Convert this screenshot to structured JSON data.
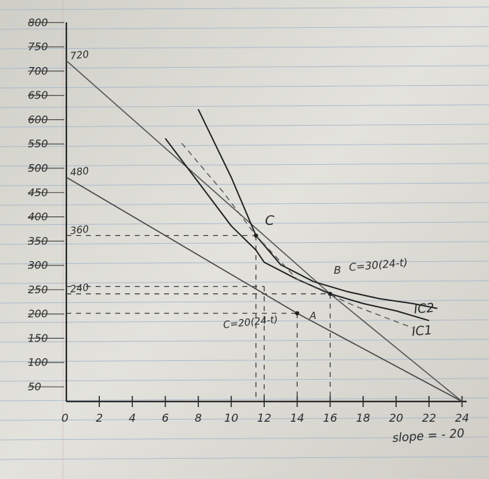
{
  "chart_data": {
    "type": "line",
    "title": "",
    "xlabel": "",
    "ylabel": "",
    "xlim": [
      0,
      24
    ],
    "ylim": [
      50,
      800
    ],
    "x_ticks": [
      "0",
      "2",
      "4",
      "6",
      "8",
      "10",
      "12",
      "14",
      "16",
      "18",
      "20",
      "22",
      "24"
    ],
    "y_ticks": [
      "800",
      "750",
      "700",
      "650",
      "600",
      "550",
      "500",
      "450",
      "400",
      "350",
      "300",
      "250",
      "200",
      "150",
      "100",
      "50"
    ],
    "series": [
      {
        "name": "C=30(24-t)",
        "values": [
          [
            0,
            720
          ],
          [
            16,
            240
          ],
          [
            24,
            0
          ]
        ]
      },
      {
        "name": "C=20(24-t)",
        "values": [
          [
            0,
            480
          ],
          [
            14,
            200
          ],
          [
            24,
            0
          ]
        ]
      },
      {
        "name": "IC2",
        "values": [
          [
            6,
            560
          ],
          [
            8,
            470
          ],
          [
            10,
            380
          ],
          [
            11.5,
            330
          ],
          [
            12,
            305
          ],
          [
            14,
            270
          ],
          [
            16,
            240
          ],
          [
            18,
            220
          ],
          [
            20,
            205
          ],
          [
            22,
            185
          ]
        ]
      },
      {
        "name": "IC1",
        "values": [
          [
            8,
            620
          ],
          [
            10,
            480
          ],
          [
            11.5,
            360
          ],
          [
            13,
            300
          ],
          [
            15,
            265
          ],
          [
            17,
            245
          ],
          [
            19,
            230
          ],
          [
            21,
            220
          ],
          [
            22.5,
            210
          ]
        ]
      },
      {
        "name": "",
        "values": [
          [
            7,
            550
          ],
          [
            9.5,
            450
          ],
          [
            11.5,
            360
          ],
          [
            14,
            270
          ],
          [
            17.5,
            215
          ],
          [
            21,
            170
          ]
        ]
      }
    ],
    "points": [
      {
        "label": "C",
        "x": 11.5,
        "y": 360
      },
      {
        "label": "B",
        "x": 16,
        "y": 240
      },
      {
        "label": "A",
        "x": 14,
        "y": 200
      }
    ],
    "y_point_labels": [
      "720",
      "480",
      "360",
      "240"
    ],
    "point_y_values": [
      720,
      480,
      360,
      240
    ],
    "line_labels": [
      "C=30(24-t)",
      "C=20(24-t)"
    ],
    "curve_labels": [
      "IC2",
      "IC1"
    ],
    "annotation": "slope = - 20"
  }
}
